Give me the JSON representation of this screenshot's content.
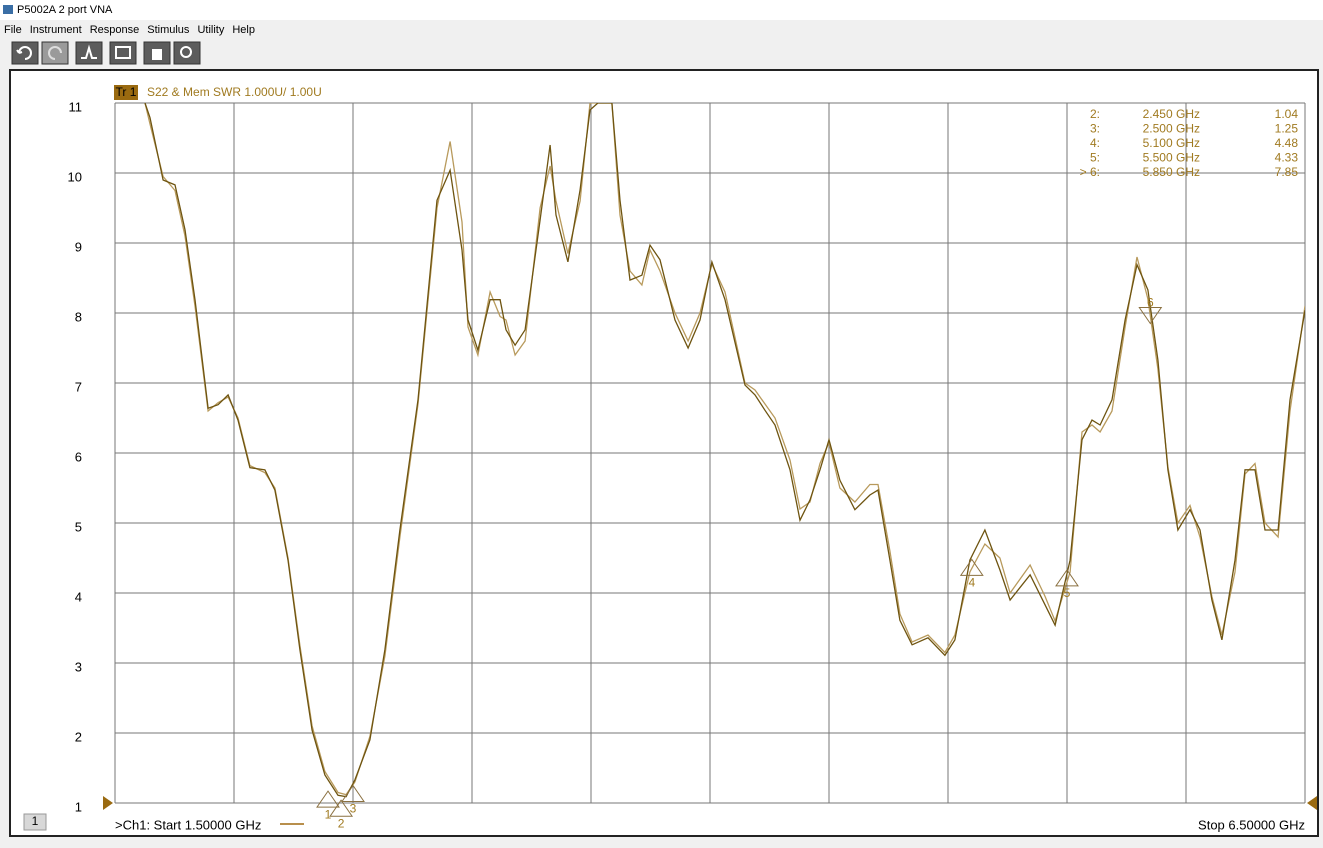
{
  "window": {
    "title": "P5002A 2 port VNA",
    "menu": [
      "File",
      "Instrument",
      "Response",
      "Stimulus",
      "Utility",
      "Help"
    ]
  },
  "trace_tag": "Tr 1",
  "trace_title": "S22 & Mem SWR 1.000U/ 1.00U",
  "channel_tag": "1",
  "start_label": ">Ch1: Start  1.50000 GHz",
  "stop_label": "Stop 6.50000 GHz",
  "chart_data": {
    "type": "line",
    "xlim": [
      1.5,
      6.5
    ],
    "xticks": [
      1.5,
      2.0,
      2.5,
      3.0,
      3.5,
      4.0,
      4.5,
      5.0,
      5.5,
      6.0,
      6.5
    ],
    "ylim": [
      1,
      11
    ],
    "yticks": [
      1,
      2,
      3,
      4,
      5,
      6,
      7,
      8,
      9,
      10,
      11
    ],
    "grid": true,
    "x": [
      1.626,
      1.647,
      1.702,
      1.752,
      1.794,
      1.836,
      1.891,
      1.933,
      1.975,
      2.017,
      2.067,
      2.13,
      2.172,
      2.227,
      2.277,
      2.328,
      2.382,
      2.437,
      2.471,
      2.508,
      2.571,
      2.634,
      2.697,
      2.773,
      2.853,
      2.908,
      2.958,
      2.983,
      3.025,
      3.076,
      3.118,
      3.143,
      3.181,
      3.223,
      3.286,
      3.328,
      3.353,
      3.403,
      3.454,
      3.496,
      3.529,
      3.588,
      3.622,
      3.664,
      3.714,
      3.748,
      3.79,
      3.853,
      3.908,
      3.958,
      4.008,
      4.063,
      4.147,
      4.189,
      4.231,
      4.273,
      4.336,
      4.378,
      4.42,
      4.462,
      4.5,
      4.546,
      4.609,
      4.672,
      4.706,
      4.756,
      4.798,
      4.849,
      4.916,
      4.987,
      5.029,
      5.092,
      5.155,
      5.218,
      5.261,
      5.345,
      5.408,
      5.45,
      5.513,
      5.563,
      5.605,
      5.639,
      5.689,
      5.744,
      5.794,
      5.84,
      5.882,
      5.924,
      5.966,
      6.017,
      6.059,
      6.109,
      6.151,
      6.206,
      6.248,
      6.29,
      6.332,
      6.387,
      6.437,
      6.5
    ],
    "series": [
      {
        "name": "S22",
        "color": "#6e5410",
        "values": [
          11.0,
          10.79,
          9.9,
          9.83,
          9.19,
          8.19,
          6.64,
          6.69,
          6.83,
          6.47,
          5.79,
          5.76,
          5.47,
          4.47,
          3.19,
          2.04,
          1.4,
          1.11,
          1.09,
          1.33,
          1.9,
          3.19,
          4.9,
          6.76,
          9.61,
          10.04,
          8.9,
          7.9,
          7.47,
          8.19,
          8.19,
          7.76,
          7.54,
          7.76,
          9.33,
          10.4,
          9.4,
          8.73,
          9.76,
          10.9,
          11.0,
          11.0,
          9.61,
          8.47,
          8.54,
          8.97,
          8.76,
          7.9,
          7.5,
          7.9,
          8.73,
          8.19,
          6.97,
          6.83,
          6.61,
          6.4,
          5.76,
          5.04,
          5.33,
          5.76,
          6.19,
          5.61,
          5.19,
          5.4,
          5.47,
          4.47,
          3.61,
          3.26,
          3.36,
          3.11,
          3.33,
          4.47,
          4.9,
          4.33,
          3.9,
          4.26,
          3.83,
          3.54,
          4.47,
          6.19,
          6.47,
          6.4,
          6.76,
          7.9,
          8.69,
          8.33,
          7.33,
          5.76,
          4.9,
          5.19,
          4.9,
          3.9,
          3.33,
          4.47,
          5.76,
          5.76,
          4.9,
          4.9,
          6.76,
          8.04
        ]
      },
      {
        "name": "Mem",
        "color": "#b89a5c",
        "values": [
          11.0,
          10.7,
          9.95,
          9.75,
          9.1,
          8.1,
          6.6,
          6.72,
          6.8,
          6.5,
          5.82,
          5.72,
          5.5,
          4.5,
          3.25,
          2.1,
          1.45,
          1.15,
          1.12,
          1.3,
          1.95,
          3.1,
          4.8,
          6.7,
          9.5,
          10.45,
          9.3,
          7.8,
          7.4,
          8.3,
          7.95,
          7.9,
          7.4,
          7.6,
          9.5,
          10.1,
          9.6,
          8.85,
          9.6,
          11.0,
          11.0,
          11.0,
          9.4,
          8.6,
          8.4,
          8.9,
          8.6,
          8.0,
          7.6,
          8.0,
          8.7,
          8.3,
          7.0,
          6.9,
          6.7,
          6.5,
          5.9,
          5.2,
          5.3,
          5.85,
          6.15,
          5.5,
          5.3,
          5.55,
          5.55,
          4.6,
          3.7,
          3.3,
          3.4,
          3.15,
          3.4,
          4.3,
          4.7,
          4.5,
          4.0,
          4.4,
          3.95,
          3.6,
          4.3,
          6.3,
          6.4,
          6.3,
          6.6,
          7.8,
          8.8,
          8.2,
          7.2,
          5.8,
          5.0,
          5.25,
          4.8,
          3.95,
          3.4,
          4.3,
          5.7,
          5.85,
          5.0,
          4.8,
          6.6,
          8.1
        ]
      }
    ],
    "markers": [
      {
        "id": "1",
        "x": 2.395,
        "value": 1.17
      },
      {
        "id": "2",
        "x": 2.45,
        "value": 1.04,
        "table_label": "2:",
        "x_label": "2.450  GHz"
      },
      {
        "id": "3",
        "x": 2.5,
        "value": 1.25,
        "table_label": "3:",
        "x_label": "2.500  GHz"
      },
      {
        "id": "4",
        "x": 5.1,
        "value": 4.48,
        "table_label": "4:",
        "x_label": "5.100  GHz"
      },
      {
        "id": "5",
        "x": 5.5,
        "value": 4.33,
        "table_label": "5:",
        "x_label": "5.500  GHz"
      },
      {
        "id": "6",
        "x": 5.85,
        "value": 7.85,
        "table_label": "> 6:",
        "x_label": "5.850  GHz",
        "active": true
      }
    ]
  }
}
